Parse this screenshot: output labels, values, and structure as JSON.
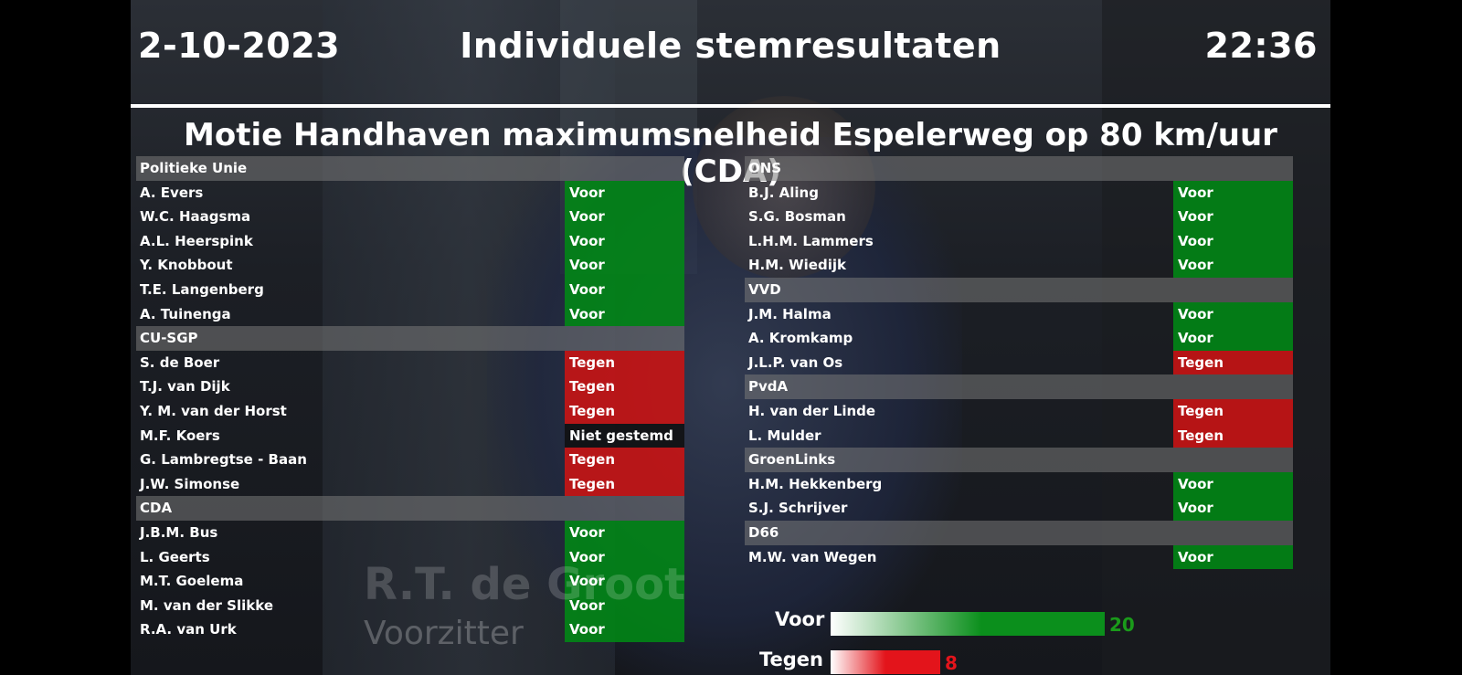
{
  "header": {
    "date": "2-10-2023",
    "title": "Individuele stemresultaten",
    "time": "22:36"
  },
  "motion": "Motie Handhaven maximumsnelheid Espelerweg op 80 km/uur (CDA)",
  "columns": [
    [
      {
        "party": "Politieke Unie"
      },
      {
        "name": "A. Evers",
        "vote": "Voor"
      },
      {
        "name": "W.C. Haagsma",
        "vote": "Voor"
      },
      {
        "name": "A.L. Heerspink",
        "vote": "Voor"
      },
      {
        "name": "Y. Knobbout",
        "vote": "Voor"
      },
      {
        "name": "T.E. Langenberg",
        "vote": "Voor"
      },
      {
        "name": "A. Tuinenga",
        "vote": "Voor"
      },
      {
        "party": "CU-SGP"
      },
      {
        "name": "S. de Boer",
        "vote": "Tegen"
      },
      {
        "name": "T.J. van Dijk",
        "vote": "Tegen"
      },
      {
        "name": "Y. M. van der Horst",
        "vote": "Tegen"
      },
      {
        "name": "M.F. Koers",
        "vote": "Niet gestemd"
      },
      {
        "name": "G. Lambregtse - Baan",
        "vote": "Tegen"
      },
      {
        "name": "J.W. Simonse",
        "vote": "Tegen"
      },
      {
        "party": "CDA"
      },
      {
        "name": "J.B.M. Bus",
        "vote": "Voor"
      },
      {
        "name": "L. Geerts",
        "vote": "Voor"
      },
      {
        "name": "M.T. Goelema",
        "vote": "Voor"
      },
      {
        "name": "M. van der Slikke",
        "vote": "Voor"
      },
      {
        "name": "R.A. van Urk",
        "vote": "Voor"
      }
    ],
    [
      {
        "party": "ONS"
      },
      {
        "name": "B.J. Aling",
        "vote": "Voor"
      },
      {
        "name": "S.G. Bosman",
        "vote": "Voor"
      },
      {
        "name": "L.H.M. Lammers",
        "vote": "Voor"
      },
      {
        "name": "H.M. Wiedijk",
        "vote": "Voor"
      },
      {
        "party": "VVD"
      },
      {
        "name": "J.M. Halma",
        "vote": "Voor"
      },
      {
        "name": "A. Kromkamp",
        "vote": "Voor"
      },
      {
        "name": "J.L.P. van Os",
        "vote": "Tegen"
      },
      {
        "party": "PvdA"
      },
      {
        "name": "H. van der Linde",
        "vote": "Tegen"
      },
      {
        "name": "L. Mulder",
        "vote": "Tegen"
      },
      {
        "party": "GroenLinks"
      },
      {
        "name": "H.M. Hekkenberg",
        "vote": "Voor"
      },
      {
        "name": "S.J. Schrijver",
        "vote": "Voor"
      },
      {
        "party": "D66"
      },
      {
        "name": "M.W. van Wegen",
        "vote": "Voor"
      }
    ]
  ],
  "watermark": {
    "name": "R.T. de Groot",
    "role": "Voorzitter"
  },
  "tally": {
    "voor_label": "Voor",
    "voor_count": 20,
    "tegen_label": "Tegen",
    "tegen_count": 8,
    "colors": {
      "voor": "#0b8f1c",
      "tegen": "#e3141b"
    }
  }
}
